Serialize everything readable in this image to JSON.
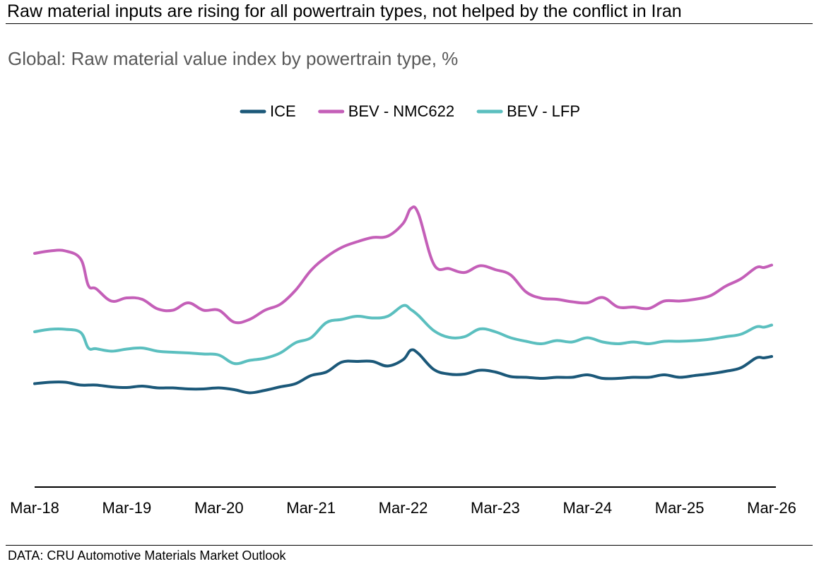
{
  "headline": "Raw material inputs are rising for all powertrain types, not helped by the conflict in Iran",
  "source": "DATA: CRU Automotive Materials Market Outlook",
  "chart_data": {
    "type": "line",
    "title": "Global: Raw material value index by powertrain type, %",
    "xlabel": "",
    "ylabel": "",
    "ylim": [
      0,
      100
    ],
    "grid": false,
    "y_axis_labels_shown": false,
    "legend_position": "top-center",
    "x_ticks": [
      "Mar-18",
      "Mar-19",
      "Mar-20",
      "Mar-21",
      "Mar-22",
      "Mar-23",
      "Mar-24",
      "Mar-25",
      "Mar-26"
    ],
    "x_range": [
      0,
      96
    ],
    "series": [
      {
        "name": "ICE",
        "color": "#1b5879",
        "points": [
          [
            0,
            29.3
          ],
          [
            2,
            29.7
          ],
          [
            4,
            29.7
          ],
          [
            6,
            28.9
          ],
          [
            8,
            28.9
          ],
          [
            10,
            28.4
          ],
          [
            12,
            28.2
          ],
          [
            14,
            28.6
          ],
          [
            16,
            28.1
          ],
          [
            18,
            28.1
          ],
          [
            20,
            27.8
          ],
          [
            22,
            27.8
          ],
          [
            24,
            28.1
          ],
          [
            26,
            27.6
          ],
          [
            28,
            26.7
          ],
          [
            30,
            27.4
          ],
          [
            32,
            28.4
          ],
          [
            34,
            29.3
          ],
          [
            36,
            31.6
          ],
          [
            38,
            32.6
          ],
          [
            40,
            35.4
          ],
          [
            42,
            35.6
          ],
          [
            44,
            35.6
          ],
          [
            46,
            34.3
          ],
          [
            48,
            36.1
          ],
          [
            49,
            38.8
          ],
          [
            50,
            37.8
          ],
          [
            52,
            33.3
          ],
          [
            54,
            32.0
          ],
          [
            56,
            32.0
          ],
          [
            58,
            33.1
          ],
          [
            60,
            32.6
          ],
          [
            62,
            31.3
          ],
          [
            64,
            31.1
          ],
          [
            66,
            30.8
          ],
          [
            68,
            31.1
          ],
          [
            70,
            31.1
          ],
          [
            72,
            31.8
          ],
          [
            74,
            30.8
          ],
          [
            76,
            30.8
          ],
          [
            78,
            31.1
          ],
          [
            80,
            31.1
          ],
          [
            82,
            31.8
          ],
          [
            84,
            31.1
          ],
          [
            86,
            31.6
          ],
          [
            88,
            32.1
          ],
          [
            90,
            32.8
          ],
          [
            92,
            33.8
          ],
          [
            94,
            36.6
          ],
          [
            95,
            36.6
          ],
          [
            96,
            37.0
          ]
        ]
      },
      {
        "name": "BEV - NMC622",
        "color": "#c45fb8",
        "points": [
          [
            0,
            66.2
          ],
          [
            2,
            66.9
          ],
          [
            4,
            66.9
          ],
          [
            6,
            64.6
          ],
          [
            7,
            57.1
          ],
          [
            8,
            56.2
          ],
          [
            10,
            52.7
          ],
          [
            12,
            53.6
          ],
          [
            14,
            53.2
          ],
          [
            16,
            50.5
          ],
          [
            18,
            50.1
          ],
          [
            20,
            52.2
          ],
          [
            22,
            50.1
          ],
          [
            24,
            50.1
          ],
          [
            26,
            46.7
          ],
          [
            28,
            47.5
          ],
          [
            30,
            50.1
          ],
          [
            32,
            51.8
          ],
          [
            34,
            55.8
          ],
          [
            36,
            61.4
          ],
          [
            38,
            65.2
          ],
          [
            40,
            67.9
          ],
          [
            42,
            69.5
          ],
          [
            44,
            70.7
          ],
          [
            46,
            71.1
          ],
          [
            48,
            74.7
          ],
          [
            49,
            78.9
          ],
          [
            50,
            77.4
          ],
          [
            52,
            63.1
          ],
          [
            54,
            61.9
          ],
          [
            56,
            60.8
          ],
          [
            58,
            62.7
          ],
          [
            60,
            61.6
          ],
          [
            62,
            60.1
          ],
          [
            64,
            55.3
          ],
          [
            66,
            53.5
          ],
          [
            68,
            53.2
          ],
          [
            70,
            52.5
          ],
          [
            72,
            52.2
          ],
          [
            74,
            53.7
          ],
          [
            76,
            51.0
          ],
          [
            78,
            51.0
          ],
          [
            80,
            50.6
          ],
          [
            82,
            52.7
          ],
          [
            84,
            52.7
          ],
          [
            86,
            53.2
          ],
          [
            88,
            54.2
          ],
          [
            90,
            56.9
          ],
          [
            92,
            59.0
          ],
          [
            94,
            62.2
          ],
          [
            95,
            62.2
          ],
          [
            96,
            62.9
          ]
        ]
      },
      {
        "name": "BEV - LFP",
        "color": "#5bbfbf",
        "points": [
          [
            0,
            44.0
          ],
          [
            2,
            44.7
          ],
          [
            4,
            44.7
          ],
          [
            6,
            43.8
          ],
          [
            7,
            39.4
          ],
          [
            8,
            39.2
          ],
          [
            10,
            38.5
          ],
          [
            12,
            39.1
          ],
          [
            14,
            39.4
          ],
          [
            16,
            38.5
          ],
          [
            18,
            38.2
          ],
          [
            20,
            38.0
          ],
          [
            22,
            37.7
          ],
          [
            24,
            37.4
          ],
          [
            26,
            35.0
          ],
          [
            28,
            35.9
          ],
          [
            30,
            36.5
          ],
          [
            32,
            38.0
          ],
          [
            34,
            40.9
          ],
          [
            36,
            42.3
          ],
          [
            38,
            46.6
          ],
          [
            40,
            47.5
          ],
          [
            42,
            48.4
          ],
          [
            44,
            47.9
          ],
          [
            46,
            48.4
          ],
          [
            48,
            51.4
          ],
          [
            49,
            50.3
          ],
          [
            50,
            48.6
          ],
          [
            52,
            44.3
          ],
          [
            54,
            42.4
          ],
          [
            56,
            42.6
          ],
          [
            58,
            44.8
          ],
          [
            60,
            44.0
          ],
          [
            62,
            42.3
          ],
          [
            64,
            41.3
          ],
          [
            66,
            40.6
          ],
          [
            68,
            41.5
          ],
          [
            70,
            41.1
          ],
          [
            72,
            42.3
          ],
          [
            74,
            41.1
          ],
          [
            76,
            40.6
          ],
          [
            78,
            41.1
          ],
          [
            80,
            40.6
          ],
          [
            82,
            41.3
          ],
          [
            84,
            41.3
          ],
          [
            86,
            41.5
          ],
          [
            88,
            41.9
          ],
          [
            90,
            42.6
          ],
          [
            92,
            43.3
          ],
          [
            94,
            45.4
          ],
          [
            95,
            45.3
          ],
          [
            96,
            45.9
          ]
        ]
      }
    ]
  }
}
